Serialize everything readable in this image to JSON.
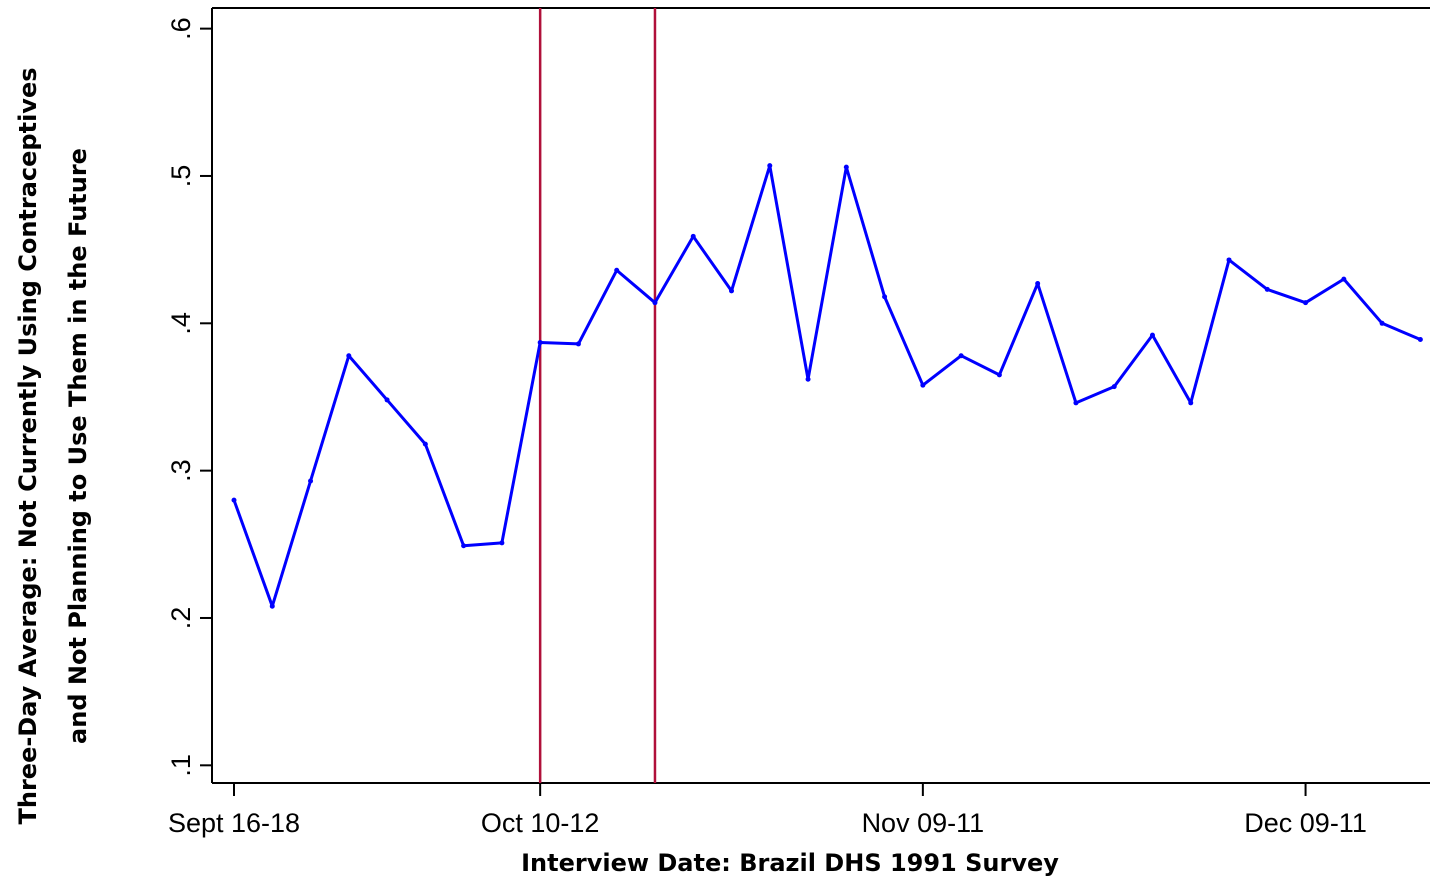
{
  "chart_data": {
    "type": "line",
    "xlabel": "Interview Date: Brazil DHS 1991 Survey",
    "ylabel": [
      "Three-Day Average: Not Currently Using Contraceptives",
      "and Not Planning to Use Them in the Future"
    ],
    "categories": [
      "Sept 16-18",
      null,
      null,
      null,
      null,
      null,
      null,
      null,
      "Oct 10-12",
      null,
      null,
      null,
      null,
      null,
      null,
      null,
      null,
      null,
      "Nov 09-11",
      null,
      null,
      null,
      null,
      null,
      null,
      null,
      null,
      null,
      "Dec 09-11",
      null,
      null,
      null
    ],
    "series": [
      {
        "name": "Three-Day Average",
        "color": "#0000ff",
        "values": [
          0.28,
          0.208,
          0.293,
          0.378,
          0.348,
          0.318,
          0.249,
          0.251,
          0.387,
          0.386,
          0.436,
          0.414,
          0.459,
          0.422,
          0.507,
          0.362,
          0.506,
          0.418,
          0.358,
          0.378,
          0.365,
          0.427,
          0.346,
          0.357,
          0.392,
          0.346,
          0.443,
          0.423,
          0.414,
          0.43,
          0.4,
          0.389
        ]
      }
    ],
    "ylim": [
      0.088,
      0.614
    ],
    "yticks": [
      {
        "value": 0.1,
        "label": ".1"
      },
      {
        "value": 0.2,
        "label": ".2"
      },
      {
        "value": 0.3,
        "label": ".3"
      },
      {
        "value": 0.4,
        "label": ".4"
      },
      {
        "value": 0.5,
        "label": ".5"
      },
      {
        "value": 0.6,
        "label": ".6"
      }
    ],
    "vline_indices": [
      8,
      11
    ],
    "vline_color": "#b0103a",
    "grid": false
  }
}
